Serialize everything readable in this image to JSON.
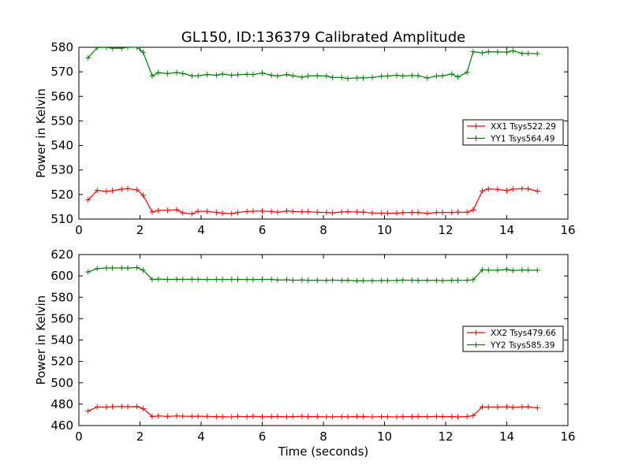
{
  "colors": {
    "xx": "#ff0000",
    "yy": "#008000",
    "axis": "#000000",
    "background": "#ffffff"
  },
  "chart_data": [
    {
      "type": "line",
      "title": "GL150, ID:136379 Calibrated Amplitude",
      "xlabel": "",
      "ylabel": "Power in Kelvin",
      "xlim": [
        0,
        16
      ],
      "ylim": [
        510,
        580
      ],
      "xticks": [
        "0",
        "2",
        "4",
        "6",
        "8",
        "10",
        "12",
        "14",
        "16"
      ],
      "yticks": [
        "510",
        "520",
        "530",
        "540",
        "550",
        "560",
        "570",
        "580"
      ],
      "grid": false,
      "legend_position": "right",
      "x": [
        0.3,
        0.6,
        0.9,
        1.1,
        1.4,
        1.6,
        1.9,
        2.1,
        2.4,
        2.6,
        2.9,
        3.2,
        3.4,
        3.7,
        3.9,
        4.2,
        4.5,
        4.7,
        5.0,
        5.2,
        5.5,
        5.7,
        6.0,
        6.3,
        6.5,
        6.8,
        7.0,
        7.3,
        7.5,
        7.8,
        8.1,
        8.3,
        8.6,
        8.8,
        9.1,
        9.3,
        9.6,
        9.9,
        10.1,
        10.4,
        10.6,
        10.9,
        11.1,
        11.4,
        11.7,
        11.9,
        12.2,
        12.4,
        12.7,
        12.9,
        13.2,
        13.4,
        13.7,
        14.0,
        14.2,
        14.5,
        14.7,
        15.0
      ],
      "series": [
        {
          "name": "XX1 Tsys522.29",
          "color": "#ff0000",
          "values": [
            517.8,
            521.7,
            521.3,
            521.6,
            522.2,
            522.4,
            521.9,
            519.7,
            512.9,
            513.5,
            513.6,
            513.8,
            512.5,
            512.1,
            513.2,
            513.1,
            512.7,
            512.4,
            512.2,
            512.7,
            513.1,
            513.2,
            513.3,
            513.1,
            512.8,
            513.3,
            513.1,
            513.0,
            513.0,
            512.8,
            512.7,
            512.5,
            512.9,
            513.0,
            512.9,
            512.8,
            512.5,
            512.4,
            512.4,
            512.4,
            512.6,
            512.7,
            512.7,
            512.3,
            512.7,
            512.7,
            512.7,
            512.8,
            512.8,
            513.7,
            521.5,
            522.3,
            522.1,
            521.6,
            522.2,
            522.4,
            522.3,
            521.4
          ]
        },
        {
          "name": "YY1 Tsys564.49",
          "color": "#008000",
          "values": [
            575.7,
            579.9,
            580.0,
            579.6,
            579.6,
            580.0,
            580.0,
            578.0,
            568.3,
            569.7,
            569.3,
            569.7,
            569.3,
            568.4,
            568.4,
            568.9,
            568.6,
            569.1,
            568.6,
            568.8,
            569.0,
            568.9,
            569.5,
            568.6,
            568.3,
            568.9,
            568.4,
            567.8,
            568.3,
            568.4,
            568.3,
            567.7,
            567.7,
            567.3,
            567.5,
            567.5,
            567.7,
            568.2,
            568.3,
            568.6,
            568.3,
            568.5,
            568.4,
            567.5,
            568.3,
            568.4,
            569.1,
            567.9,
            569.8,
            578.2,
            577.7,
            578.2,
            578.1,
            578.0,
            578.6,
            577.5,
            577.5,
            577.4
          ]
        }
      ]
    },
    {
      "type": "line",
      "title": "",
      "xlabel": "Time (seconds)",
      "ylabel": "Power in Kelvin",
      "xlim": [
        0,
        16
      ],
      "ylim": [
        460,
        620
      ],
      "xticks": [
        "0",
        "2",
        "4",
        "6",
        "8",
        "10",
        "12",
        "14",
        "16"
      ],
      "yticks": [
        "460",
        "480",
        "500",
        "520",
        "540",
        "560",
        "580",
        "600",
        "620"
      ],
      "grid": false,
      "legend_position": "right",
      "x": [
        0.3,
        0.6,
        0.9,
        1.1,
        1.4,
        1.6,
        1.9,
        2.1,
        2.4,
        2.6,
        2.9,
        3.2,
        3.4,
        3.7,
        3.9,
        4.2,
        4.5,
        4.7,
        5.0,
        5.2,
        5.5,
        5.7,
        6.0,
        6.3,
        6.5,
        6.8,
        7.0,
        7.3,
        7.5,
        7.8,
        8.1,
        8.3,
        8.6,
        8.8,
        9.1,
        9.3,
        9.6,
        9.9,
        10.1,
        10.4,
        10.6,
        10.9,
        11.1,
        11.4,
        11.7,
        11.9,
        12.2,
        12.4,
        12.7,
        12.9,
        13.2,
        13.4,
        13.7,
        14.0,
        14.2,
        14.5,
        14.7,
        15.0
      ],
      "series": [
        {
          "name": "XX2 Tsys479.66",
          "color": "#ff0000",
          "values": [
            473.5,
            477.5,
            477.3,
            477.7,
            477.8,
            477.7,
            477.8,
            475.9,
            468.5,
            469.0,
            468.6,
            469.0,
            468.8,
            468.7,
            468.8,
            468.6,
            468.3,
            468.2,
            468.1,
            468.6,
            468.3,
            468.7,
            468.2,
            468.4,
            468.5,
            468.2,
            468.4,
            468.6,
            468.3,
            468.5,
            468.1,
            468.2,
            468.3,
            468.2,
            468.5,
            468.4,
            468.1,
            468.3,
            468.2,
            468.1,
            468.3,
            468.4,
            468.5,
            468.3,
            468.6,
            468.3,
            468.4,
            468.1,
            468.5,
            469.3,
            477.5,
            477.3,
            477.3,
            477.6,
            477.1,
            477.4,
            477.6,
            476.5
          ]
        },
        {
          "name": "YY2 Tsys585.39",
          "color": "#008000",
          "values": [
            603.7,
            606.9,
            607.5,
            607.5,
            607.5,
            607.4,
            607.8,
            605.4,
            596.7,
            597.1,
            596.8,
            596.9,
            596.8,
            596.9,
            596.8,
            596.7,
            596.8,
            596.7,
            596.8,
            596.8,
            596.7,
            596.6,
            596.8,
            596.8,
            596.2,
            596.4,
            596.0,
            596.2,
            596.0,
            596.0,
            595.8,
            596.1,
            595.8,
            596.0,
            595.4,
            595.6,
            595.5,
            595.7,
            595.7,
            595.8,
            596.1,
            596.0,
            595.8,
            596.0,
            595.8,
            595.6,
            596.0,
            595.9,
            596.0,
            596.4,
            605.7,
            605.4,
            605.4,
            606.1,
            605.0,
            605.6,
            605.4,
            605.3
          ]
        }
      ]
    }
  ]
}
